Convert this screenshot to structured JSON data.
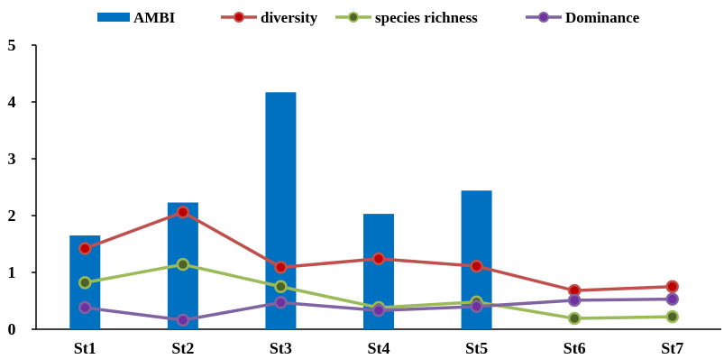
{
  "colors": {
    "axis": "#000000",
    "background": "#ffffff"
  },
  "chart_data": {
    "type": "bar",
    "title": "",
    "xlabel": "",
    "ylabel": "",
    "categories": [
      "St1",
      "St2",
      "St3",
      "St4",
      "St5",
      "St6",
      "St7"
    ],
    "ylim": [
      0,
      5
    ],
    "yticks": [
      "0",
      "1",
      "2",
      "3",
      "4",
      "5"
    ],
    "grid": false,
    "legend_position": "top",
    "series": [
      {
        "name": "AMBI",
        "kind": "bar",
        "color": "#0070c0",
        "values": [
          1.65,
          2.23,
          4.17,
          2.03,
          2.44,
          null,
          null
        ]
      },
      {
        "name": "diversity",
        "kind": "line",
        "color": "#c0504d",
        "marker": "#c00000",
        "values": [
          1.42,
          2.06,
          1.09,
          1.24,
          1.11,
          0.68,
          0.75
        ]
      },
      {
        "name": "species richness",
        "kind": "line",
        "color": "#9bbb59",
        "marker": "#4f6228",
        "values": [
          0.82,
          1.14,
          0.75,
          0.38,
          0.48,
          0.19,
          0.22
        ]
      },
      {
        "name": "Dominance",
        "kind": "line",
        "color": "#8064a2",
        "marker": "#7030a0",
        "values": [
          0.38,
          0.16,
          0.47,
          0.33,
          0.4,
          0.51,
          0.53
        ]
      }
    ]
  }
}
